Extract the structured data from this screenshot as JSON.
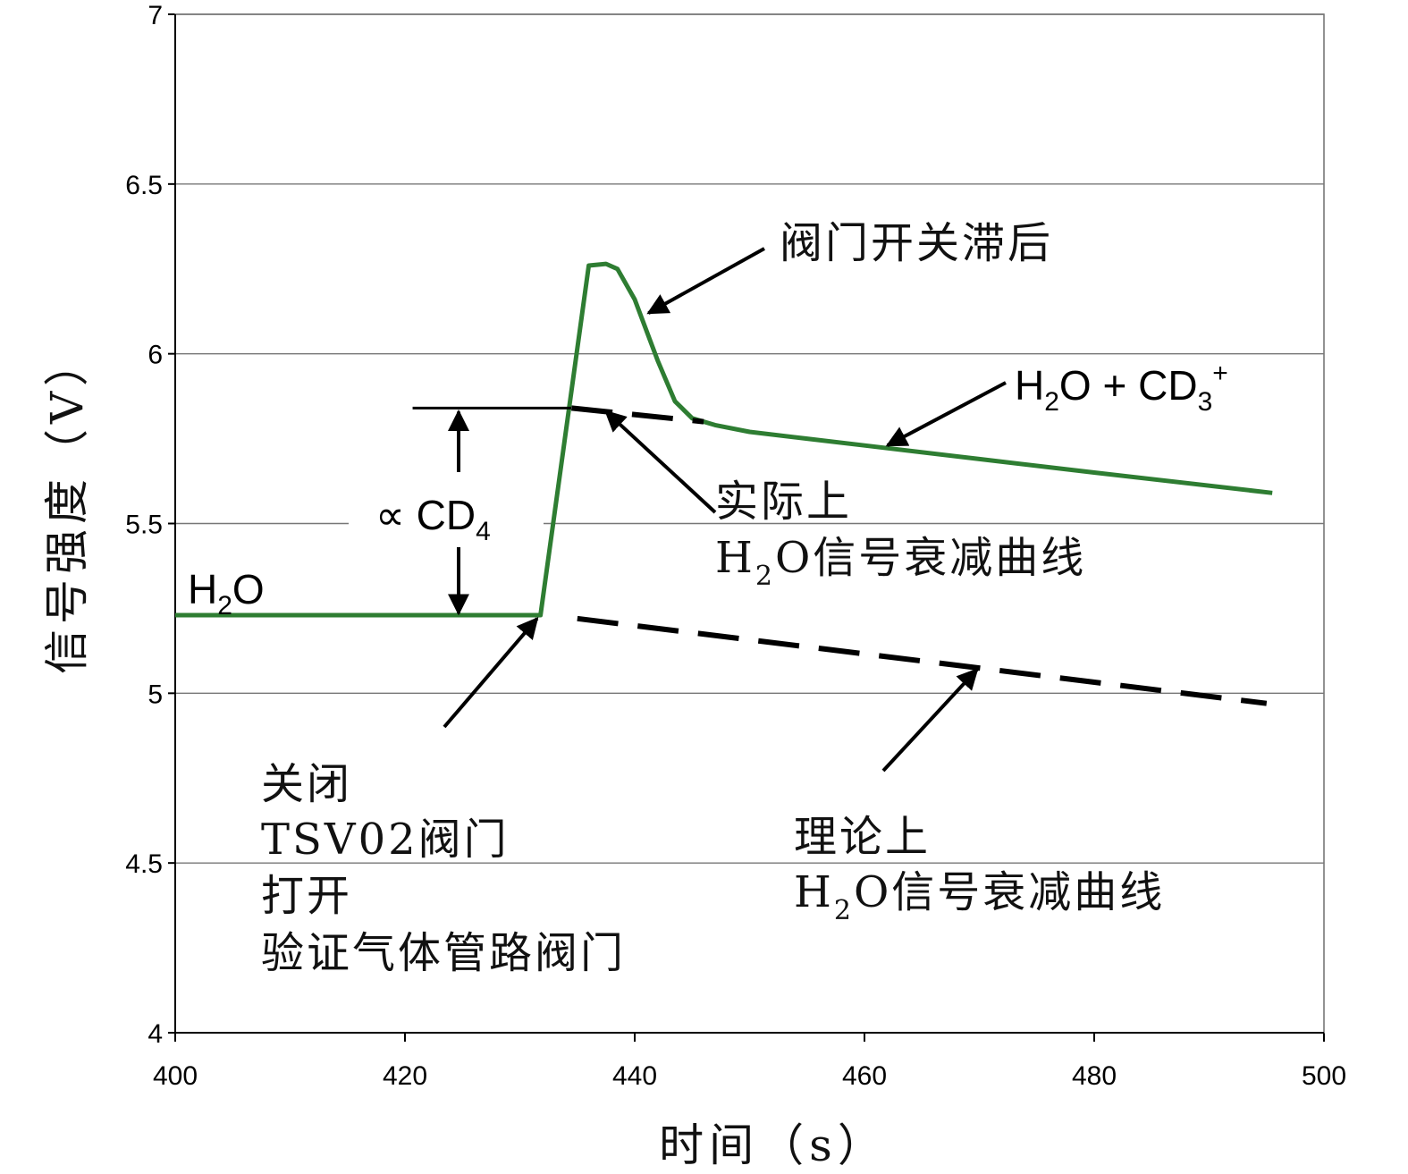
{
  "chart_data": {
    "type": "line",
    "xlabel": "时间（s）",
    "ylabel": "信号强度（V）",
    "xlim": [
      400,
      500
    ],
    "ylim": [
      4,
      7
    ],
    "xticks": [
      "400",
      "420",
      "440",
      "460",
      "480",
      "500"
    ],
    "yticks": [
      "4",
      "4.5",
      "5",
      "5.5",
      "6",
      "6.5",
      "7"
    ],
    "grid": "horizontal",
    "series": [
      {
        "name": "",
        "style": "solid",
        "color": "#2e7d32",
        "x": [
          400,
          431.8,
          436,
          437.5,
          438.5,
          440,
          442,
          443.5,
          445,
          447,
          450,
          455,
          460,
          470,
          480,
          495.5
        ],
        "y": [
          5.23,
          5.23,
          6.26,
          6.265,
          6.25,
          6.16,
          5.98,
          5.86,
          5.81,
          5.79,
          5.77,
          5.75,
          5.73,
          5.69,
          5.65,
          5.59
        ]
      },
      {
        "name": "",
        "style": "dashed",
        "color": "#000000",
        "x": [
          434.5,
          446
        ],
        "y": [
          5.84,
          5.8
        ]
      },
      {
        "name": "",
        "style": "dashed",
        "color": "#000000",
        "x": [
          435,
          495
        ],
        "y": [
          5.22,
          4.97
        ]
      }
    ],
    "reference": {
      "x_start": 423,
      "x_end": 434,
      "y": 5.84
    },
    "annotations": {
      "h2o": {
        "main": "H",
        "sub": "2",
        "rest": "O"
      },
      "h2o_cd3": {
        "main": "H",
        "sub": "2",
        "mid": "O + CD",
        "sub2": "3",
        "sup": "+"
      },
      "cd4": {
        "prefix": "∝ CD",
        "sub": "4"
      },
      "valve_lag": "阀门开关滞后",
      "actual": [
        "实际上",
        "H",
        "2",
        "O信号衰减曲线"
      ],
      "theory": [
        "理论上",
        "H",
        "2",
        "O信号衰减曲线"
      ],
      "close_open": [
        "关闭",
        "TSV02阀门",
        "打开",
        "验证气体管路阀门"
      ]
    }
  }
}
